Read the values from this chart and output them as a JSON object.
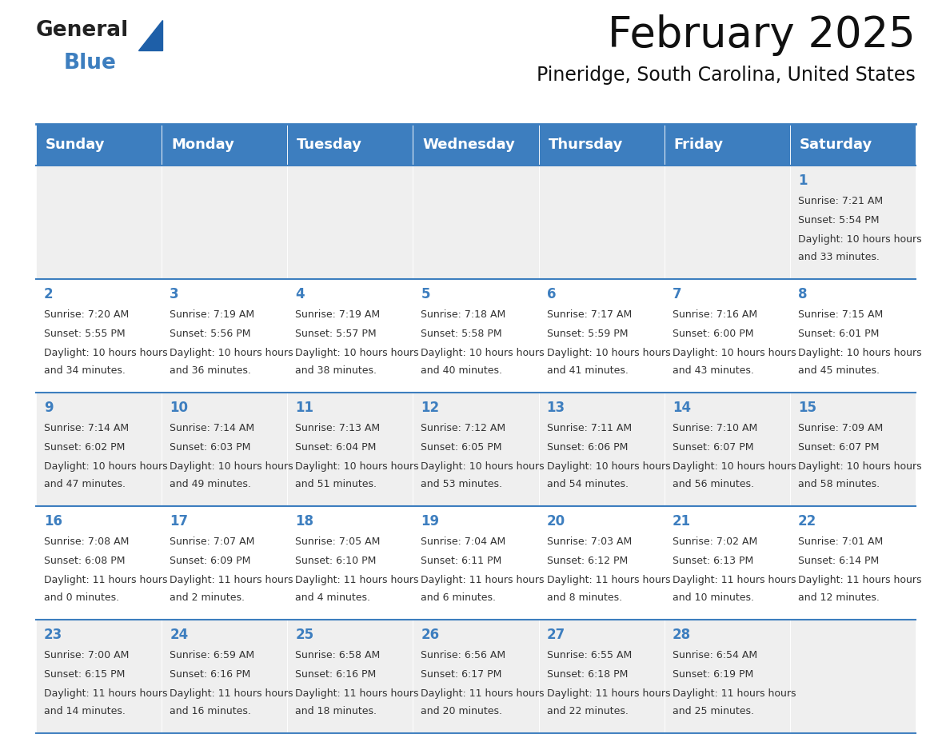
{
  "title": "February 2025",
  "subtitle": "Pineridge, South Carolina, United States",
  "header_color": "#3d7ebf",
  "header_text_color": "#ffffff",
  "cell_bg_light": "#efefef",
  "cell_bg_white": "#ffffff",
  "border_color": "#3d7ebf",
  "text_color": "#333333",
  "day_num_color": "#3d7ebf",
  "days_of_week": [
    "Sunday",
    "Monday",
    "Tuesday",
    "Wednesday",
    "Thursday",
    "Friday",
    "Saturday"
  ],
  "calendar_data": [
    [
      null,
      null,
      null,
      null,
      null,
      null,
      {
        "day": 1,
        "sunrise": "7:21 AM",
        "sunset": "5:54 PM",
        "daylight": "10 hours and 33 minutes."
      }
    ],
    [
      {
        "day": 2,
        "sunrise": "7:20 AM",
        "sunset": "5:55 PM",
        "daylight": "10 hours and 34 minutes."
      },
      {
        "day": 3,
        "sunrise": "7:19 AM",
        "sunset": "5:56 PM",
        "daylight": "10 hours and 36 minutes."
      },
      {
        "day": 4,
        "sunrise": "7:19 AM",
        "sunset": "5:57 PM",
        "daylight": "10 hours and 38 minutes."
      },
      {
        "day": 5,
        "sunrise": "7:18 AM",
        "sunset": "5:58 PM",
        "daylight": "10 hours and 40 minutes."
      },
      {
        "day": 6,
        "sunrise": "7:17 AM",
        "sunset": "5:59 PM",
        "daylight": "10 hours and 41 minutes."
      },
      {
        "day": 7,
        "sunrise": "7:16 AM",
        "sunset": "6:00 PM",
        "daylight": "10 hours and 43 minutes."
      },
      {
        "day": 8,
        "sunrise": "7:15 AM",
        "sunset": "6:01 PM",
        "daylight": "10 hours and 45 minutes."
      }
    ],
    [
      {
        "day": 9,
        "sunrise": "7:14 AM",
        "sunset": "6:02 PM",
        "daylight": "10 hours and 47 minutes."
      },
      {
        "day": 10,
        "sunrise": "7:14 AM",
        "sunset": "6:03 PM",
        "daylight": "10 hours and 49 minutes."
      },
      {
        "day": 11,
        "sunrise": "7:13 AM",
        "sunset": "6:04 PM",
        "daylight": "10 hours and 51 minutes."
      },
      {
        "day": 12,
        "sunrise": "7:12 AM",
        "sunset": "6:05 PM",
        "daylight": "10 hours and 53 minutes."
      },
      {
        "day": 13,
        "sunrise": "7:11 AM",
        "sunset": "6:06 PM",
        "daylight": "10 hours and 54 minutes."
      },
      {
        "day": 14,
        "sunrise": "7:10 AM",
        "sunset": "6:07 PM",
        "daylight": "10 hours and 56 minutes."
      },
      {
        "day": 15,
        "sunrise": "7:09 AM",
        "sunset": "6:07 PM",
        "daylight": "10 hours and 58 minutes."
      }
    ],
    [
      {
        "day": 16,
        "sunrise": "7:08 AM",
        "sunset": "6:08 PM",
        "daylight": "11 hours and 0 minutes."
      },
      {
        "day": 17,
        "sunrise": "7:07 AM",
        "sunset": "6:09 PM",
        "daylight": "11 hours and 2 minutes."
      },
      {
        "day": 18,
        "sunrise": "7:05 AM",
        "sunset": "6:10 PM",
        "daylight": "11 hours and 4 minutes."
      },
      {
        "day": 19,
        "sunrise": "7:04 AM",
        "sunset": "6:11 PM",
        "daylight": "11 hours and 6 minutes."
      },
      {
        "day": 20,
        "sunrise": "7:03 AM",
        "sunset": "6:12 PM",
        "daylight": "11 hours and 8 minutes."
      },
      {
        "day": 21,
        "sunrise": "7:02 AM",
        "sunset": "6:13 PM",
        "daylight": "11 hours and 10 minutes."
      },
      {
        "day": 22,
        "sunrise": "7:01 AM",
        "sunset": "6:14 PM",
        "daylight": "11 hours and 12 minutes."
      }
    ],
    [
      {
        "day": 23,
        "sunrise": "7:00 AM",
        "sunset": "6:15 PM",
        "daylight": "11 hours and 14 minutes."
      },
      {
        "day": 24,
        "sunrise": "6:59 AM",
        "sunset": "6:16 PM",
        "daylight": "11 hours and 16 minutes."
      },
      {
        "day": 25,
        "sunrise": "6:58 AM",
        "sunset": "6:16 PM",
        "daylight": "11 hours and 18 minutes."
      },
      {
        "day": 26,
        "sunrise": "6:56 AM",
        "sunset": "6:17 PM",
        "daylight": "11 hours and 20 minutes."
      },
      {
        "day": 27,
        "sunrise": "6:55 AM",
        "sunset": "6:18 PM",
        "daylight": "11 hours and 22 minutes."
      },
      {
        "day": 28,
        "sunrise": "6:54 AM",
        "sunset": "6:19 PM",
        "daylight": "11 hours and 25 minutes."
      },
      null
    ]
  ],
  "logo_text_general": "General",
  "logo_text_blue": "Blue",
  "logo_color_general": "#222222",
  "logo_color_blue": "#3d7ebf",
  "title_fontsize": 38,
  "subtitle_fontsize": 17,
  "day_header_fontsize": 13,
  "day_num_fontsize": 12,
  "cell_text_fontsize": 9
}
